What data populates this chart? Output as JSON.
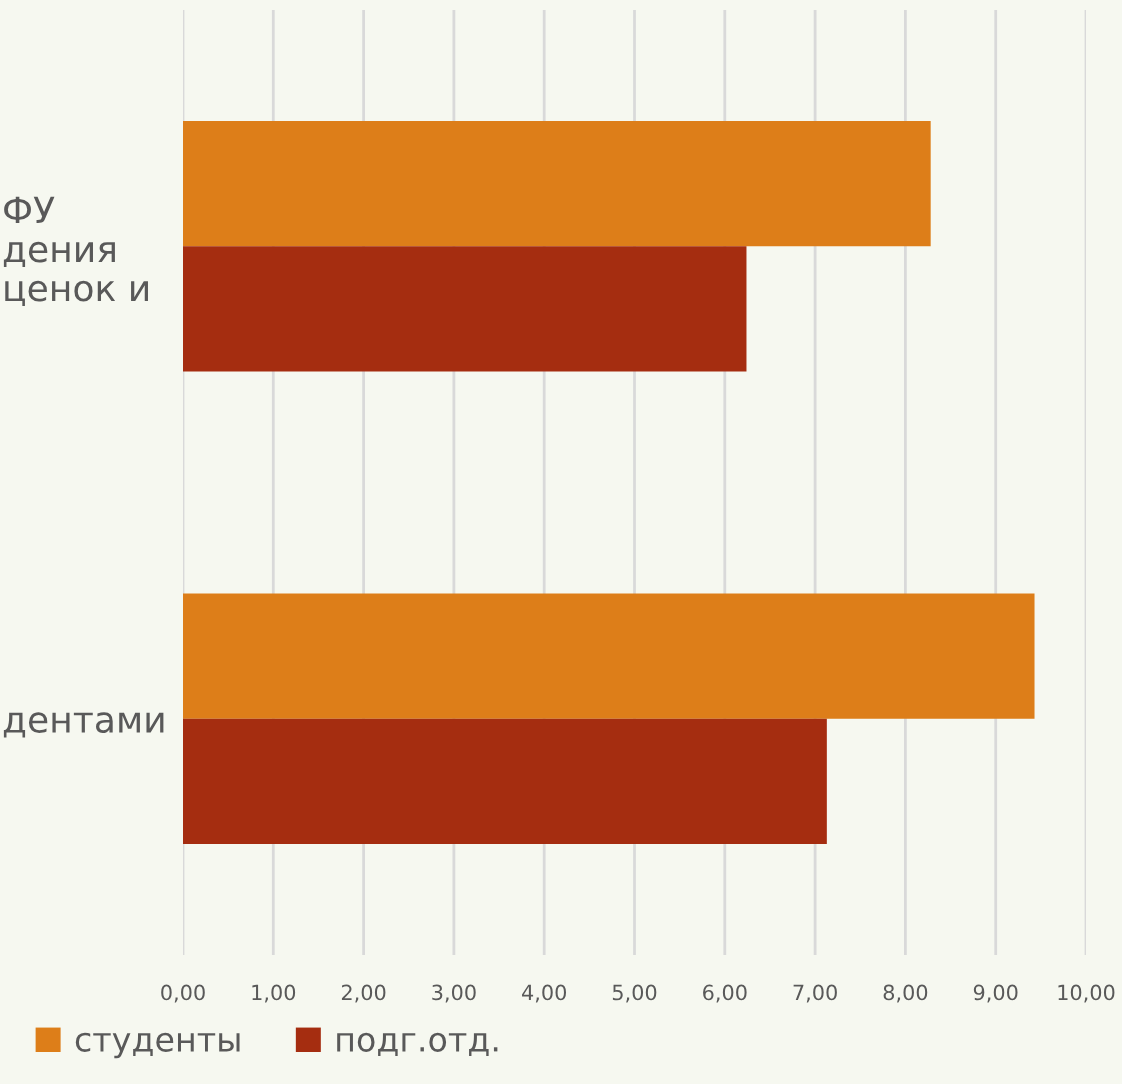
{
  "chart_data": {
    "type": "bar",
    "orientation": "horizontal",
    "categories": [
      "ФУ\nдения\nценок и",
      "дентами"
    ],
    "series": [
      {
        "name": "студенты",
        "color": "#dd7e19",
        "values": [
          8.28,
          9.43
        ]
      },
      {
        "name": "подг.отд.",
        "color": "#a52d10",
        "values": [
          6.24,
          7.13
        ]
      }
    ],
    "xlim": [
      0,
      10
    ],
    "xticks": [
      {
        "value": 0,
        "label": "0,00"
      },
      {
        "value": 1,
        "label": "1,00"
      },
      {
        "value": 2,
        "label": "2,00"
      },
      {
        "value": 3,
        "label": "3,00"
      },
      {
        "value": 4,
        "label": "4,00"
      },
      {
        "value": 5,
        "label": "5,00"
      },
      {
        "value": 6,
        "label": "6,00"
      },
      {
        "value": 7,
        "label": "7,00"
      },
      {
        "value": 8,
        "label": "8,00"
      },
      {
        "value": 9,
        "label": "9,00"
      },
      {
        "value": 10,
        "label": "10,00"
      }
    ],
    "grid": "x",
    "legend": "bottom"
  }
}
